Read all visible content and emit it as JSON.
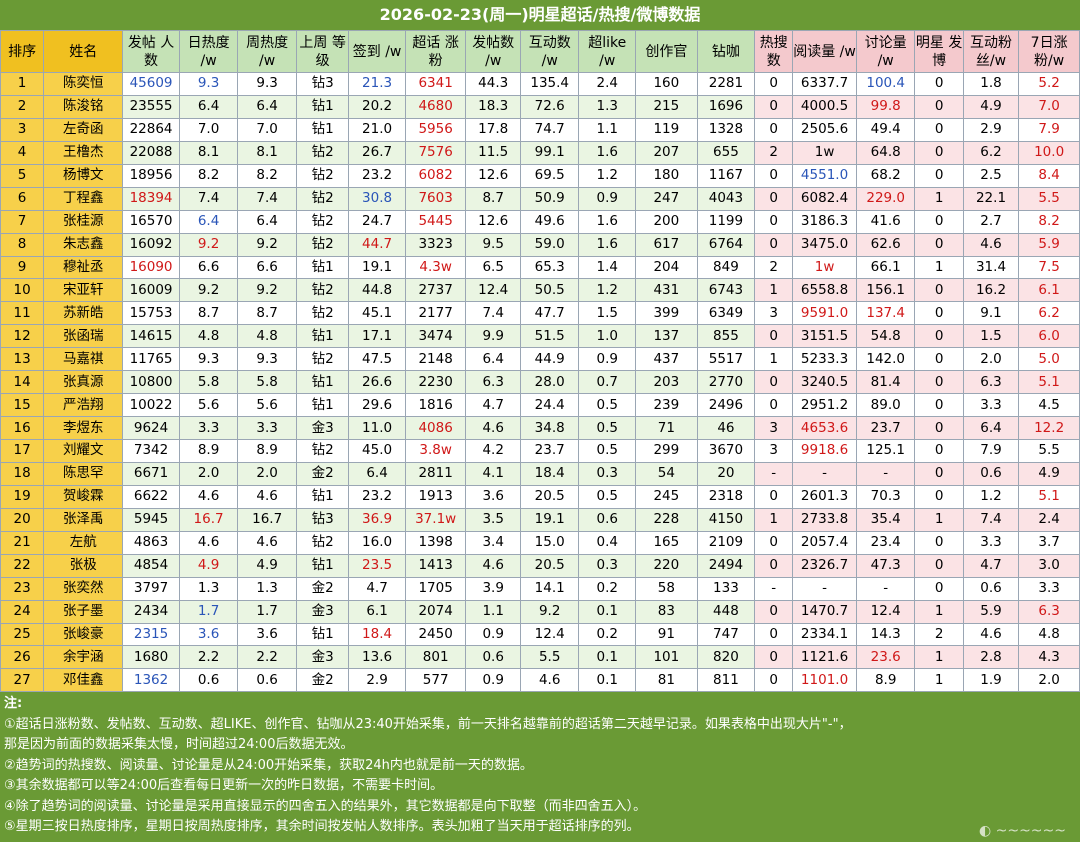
{
  "title": "2026-02-23(周一)明星超话/热搜/微博数据",
  "chart_data": {
    "type": "table",
    "columns": [
      {
        "key": "rank",
        "label": "排序",
        "cls": "h-rank"
      },
      {
        "key": "name",
        "label": "姓名",
        "cls": "h-name"
      },
      {
        "key": "posters",
        "label": "发帖 人数",
        "cls": "h-green h-bold"
      },
      {
        "key": "daily_heat",
        "label": "日热度 /w",
        "cls": "h-green"
      },
      {
        "key": "weekly_heat",
        "label": "周热度 /w",
        "cls": "h-green"
      },
      {
        "key": "level",
        "label": "上周 等级",
        "cls": "h-green"
      },
      {
        "key": "checkin",
        "label": "签到 /w",
        "cls": "h-green"
      },
      {
        "key": "topic_fans",
        "label": "超话 涨粉",
        "cls": "h-green"
      },
      {
        "key": "posts",
        "label": "发帖数 /w",
        "cls": "h-green"
      },
      {
        "key": "interactions",
        "label": "互动数 /w",
        "cls": "h-green"
      },
      {
        "key": "super_like",
        "label": "超like /w",
        "cls": "h-green"
      },
      {
        "key": "creators",
        "label": "创作官",
        "cls": "h-green"
      },
      {
        "key": "diamond",
        "label": "钻咖",
        "cls": "h-green"
      },
      {
        "key": "hot_search",
        "label": "热搜 数",
        "cls": "h-pink"
      },
      {
        "key": "reads",
        "label": "阅读量 /w",
        "cls": "h-pink"
      },
      {
        "key": "discussions",
        "label": "讨论量 /w",
        "cls": "h-pink"
      },
      {
        "key": "star_posts",
        "label": "明星 发博",
        "cls": "h-pink"
      },
      {
        "key": "interact_fans",
        "label": "互动粉 丝/w",
        "cls": "h-pink"
      },
      {
        "key": "fans_7d",
        "label": "7日涨 粉/w",
        "cls": "h-pink"
      }
    ],
    "rows": [
      [
        "1",
        "陈奕恒",
        "45609",
        "9.3",
        "9.3",
        "钻3",
        "21.3",
        "6341",
        "44.3",
        "135.4",
        "2.4",
        "160",
        "2281",
        "0",
        "6337.7",
        "100.4",
        "0",
        "1.8",
        "5.2"
      ],
      [
        "2",
        "陈浚铭",
        "23555",
        "6.4",
        "6.4",
        "钻1",
        "20.2",
        "4680",
        "18.3",
        "72.6",
        "1.3",
        "215",
        "1696",
        "0",
        "4000.5",
        "99.8",
        "0",
        "4.9",
        "7.0"
      ],
      [
        "3",
        "左奇函",
        "22864",
        "7.0",
        "7.0",
        "钻1",
        "21.0",
        "5956",
        "17.8",
        "74.7",
        "1.1",
        "119",
        "1328",
        "0",
        "2505.6",
        "49.4",
        "0",
        "2.9",
        "7.9"
      ],
      [
        "4",
        "王橹杰",
        "22088",
        "8.1",
        "8.1",
        "钻2",
        "26.7",
        "7576",
        "11.5",
        "99.1",
        "1.6",
        "207",
        "655",
        "2",
        "1w",
        "64.8",
        "0",
        "6.2",
        "10.0"
      ],
      [
        "5",
        "杨博文",
        "18956",
        "8.2",
        "8.2",
        "钻2",
        "23.2",
        "6082",
        "12.6",
        "69.5",
        "1.2",
        "180",
        "1167",
        "0",
        "4551.0",
        "68.2",
        "0",
        "2.5",
        "8.4"
      ],
      [
        "6",
        "丁程鑫",
        "18394",
        "7.4",
        "7.4",
        "钻2",
        "30.8",
        "7603",
        "8.7",
        "50.9",
        "0.9",
        "247",
        "4043",
        "0",
        "6082.4",
        "229.0",
        "1",
        "22.1",
        "5.5"
      ],
      [
        "7",
        "张桂源",
        "16570",
        "6.4",
        "6.4",
        "钻2",
        "24.7",
        "5445",
        "12.6",
        "49.6",
        "1.6",
        "200",
        "1199",
        "0",
        "3186.3",
        "41.6",
        "0",
        "2.7",
        "8.2"
      ],
      [
        "8",
        "朱志鑫",
        "16092",
        "9.2",
        "9.2",
        "钻2",
        "44.7",
        "3323",
        "9.5",
        "59.0",
        "1.6",
        "617",
        "6764",
        "0",
        "3475.0",
        "62.6",
        "0",
        "4.6",
        "5.9"
      ],
      [
        "9",
        "穆祉丞",
        "16090",
        "6.6",
        "6.6",
        "钻1",
        "19.1",
        "4.3w",
        "6.5",
        "65.3",
        "1.4",
        "204",
        "849",
        "2",
        "1w",
        "66.1",
        "1",
        "31.4",
        "7.5"
      ],
      [
        "10",
        "宋亚轩",
        "16009",
        "9.2",
        "9.2",
        "钻2",
        "44.8",
        "2737",
        "12.4",
        "50.5",
        "1.2",
        "431",
        "6743",
        "1",
        "6558.8",
        "156.1",
        "0",
        "16.2",
        "6.1"
      ],
      [
        "11",
        "苏新皓",
        "15753",
        "8.7",
        "8.7",
        "钻2",
        "45.1",
        "2177",
        "7.4",
        "47.7",
        "1.5",
        "399",
        "6349",
        "3",
        "9591.0",
        "137.4",
        "0",
        "9.1",
        "6.2"
      ],
      [
        "12",
        "张函瑞",
        "14615",
        "4.8",
        "4.8",
        "钻1",
        "17.1",
        "3474",
        "9.9",
        "51.5",
        "1.0",
        "137",
        "855",
        "0",
        "3151.5",
        "54.8",
        "0",
        "1.5",
        "6.0"
      ],
      [
        "13",
        "马嘉祺",
        "11765",
        "9.3",
        "9.3",
        "钻2",
        "47.5",
        "2148",
        "6.4",
        "44.9",
        "0.9",
        "437",
        "5517",
        "1",
        "5233.3",
        "142.0",
        "0",
        "2.0",
        "5.0"
      ],
      [
        "14",
        "张真源",
        "10800",
        "5.8",
        "5.8",
        "钻1",
        "26.6",
        "2230",
        "6.3",
        "28.0",
        "0.7",
        "203",
        "2770",
        "0",
        "3240.5",
        "81.4",
        "0",
        "6.3",
        "5.1"
      ],
      [
        "15",
        "严浩翔",
        "10022",
        "5.6",
        "5.6",
        "钻1",
        "29.6",
        "1816",
        "4.7",
        "24.4",
        "0.5",
        "239",
        "2496",
        "0",
        "2951.2",
        "89.0",
        "0",
        "3.3",
        "4.5"
      ],
      [
        "16",
        "李煜东",
        "9624",
        "3.3",
        "3.3",
        "金3",
        "11.0",
        "4086",
        "4.6",
        "34.8",
        "0.5",
        "71",
        "46",
        "3",
        "4653.6",
        "23.7",
        "0",
        "6.4",
        "12.2"
      ],
      [
        "17",
        "刘耀文",
        "7342",
        "8.9",
        "8.9",
        "钻2",
        "45.0",
        "3.8w",
        "4.2",
        "23.7",
        "0.5",
        "299",
        "3670",
        "3",
        "9918.6",
        "125.1",
        "0",
        "7.9",
        "5.5"
      ],
      [
        "18",
        "陈思罕",
        "6671",
        "2.0",
        "2.0",
        "金2",
        "6.4",
        "2811",
        "4.1",
        "18.4",
        "0.3",
        "54",
        "20",
        "-",
        "-",
        "-",
        "0",
        "0.6",
        "4.9"
      ],
      [
        "19",
        "贺峻霖",
        "6622",
        "4.6",
        "4.6",
        "钻1",
        "23.2",
        "1913",
        "3.6",
        "20.5",
        "0.5",
        "245",
        "2318",
        "0",
        "2601.3",
        "70.3",
        "0",
        "1.2",
        "5.1"
      ],
      [
        "20",
        "张泽禹",
        "5945",
        "16.7",
        "16.7",
        "钻3",
        "36.9",
        "37.1w",
        "3.5",
        "19.1",
        "0.6",
        "228",
        "4150",
        "1",
        "2733.8",
        "35.4",
        "1",
        "7.4",
        "2.4"
      ],
      [
        "21",
        "左航",
        "4863",
        "4.6",
        "4.6",
        "钻2",
        "16.0",
        "1398",
        "3.4",
        "15.0",
        "0.4",
        "165",
        "2109",
        "0",
        "2057.4",
        "23.4",
        "0",
        "3.3",
        "3.7"
      ],
      [
        "22",
        "张极",
        "4854",
        "4.9",
        "4.9",
        "钻1",
        "23.5",
        "1413",
        "4.6",
        "20.5",
        "0.3",
        "220",
        "2494",
        "0",
        "2326.7",
        "47.3",
        "0",
        "4.7",
        "3.0"
      ],
      [
        "23",
        "张奕然",
        "3797",
        "1.3",
        "1.3",
        "金2",
        "4.7",
        "1705",
        "3.9",
        "14.1",
        "0.2",
        "58",
        "133",
        "-",
        "-",
        "-",
        "0",
        "0.6",
        "3.3"
      ],
      [
        "24",
        "张子墨",
        "2434",
        "1.7",
        "1.7",
        "金3",
        "6.1",
        "2074",
        "1.1",
        "9.2",
        "0.1",
        "83",
        "448",
        "0",
        "1470.7",
        "12.4",
        "1",
        "5.9",
        "6.3"
      ],
      [
        "25",
        "张峻豪",
        "2315",
        "3.6",
        "3.6",
        "钻1",
        "18.4",
        "2450",
        "0.9",
        "12.4",
        "0.2",
        "91",
        "747",
        "0",
        "2334.1",
        "14.3",
        "2",
        "4.6",
        "4.8"
      ],
      [
        "26",
        "余宇涵",
        "1680",
        "2.2",
        "2.2",
        "金3",
        "13.6",
        "801",
        "0.6",
        "5.5",
        "0.1",
        "101",
        "820",
        "0",
        "1121.6",
        "23.6",
        "1",
        "2.8",
        "4.3"
      ],
      [
        "27",
        "邓佳鑫",
        "1362",
        "0.6",
        "0.6",
        "金2",
        "2.9",
        "577",
        "0.9",
        "4.6",
        "0.1",
        "81",
        "811",
        "0",
        "1101.0",
        "8.9",
        "1",
        "1.9",
        "2.0"
      ]
    ],
    "highlights": {
      "blue": {
        "0": {
          "posters": 1,
          "daily_heat": 1,
          "checkin": 1,
          "discussions": 1
        },
        "4": {
          "reads": 1
        },
        "5": {
          "checkin": 1
        },
        "6": {
          "daily_heat": 1
        },
        "23": {
          "daily_heat": 1
        },
        "24": {
          "posters": 1,
          "daily_heat": 1
        },
        "26": {
          "posters": 1
        }
      },
      "red": {
        "0": {
          "topic_fans": 1,
          "fans_7d": 1
        },
        "1": {
          "topic_fans": 1,
          "discussions": 1,
          "fans_7d": 1
        },
        "2": {
          "topic_fans": 1,
          "fans_7d": 1
        },
        "3": {
          "topic_fans": 1,
          "fans_7d": 1
        },
        "4": {
          "topic_fans": 1,
          "fans_7d": 1
        },
        "5": {
          "posters": 1,
          "topic_fans": 1,
          "discussions": 1,
          "fans_7d": 1
        },
        "6": {
          "topic_fans": 1,
          "fans_7d": 1
        },
        "7": {
          "daily_heat": 1,
          "checkin": 1,
          "fans_7d": 1
        },
        "8": {
          "posters": 1,
          "topic_fans": 1,
          "reads": 1,
          "fans_7d": 1
        },
        "9": {
          "fans_7d": 1
        },
        "10": {
          "reads": 1,
          "discussions": 1,
          "fans_7d": 1
        },
        "11": {
          "fans_7d": 1
        },
        "12": {
          "fans_7d": 1
        },
        "13": {
          "fans_7d": 1
        },
        "15": {
          "topic_fans": 1,
          "reads": 1,
          "fans_7d": 1
        },
        "16": {
          "topic_fans": 1,
          "reads": 1
        },
        "18": {
          "fans_7d": 1
        },
        "19": {
          "daily_heat": 1,
          "checkin": 1,
          "topic_fans": 1
        },
        "21": {
          "daily_heat": 1,
          "checkin": 1
        },
        "23": {
          "fans_7d": 1
        },
        "24": {
          "checkin": 1
        },
        "25": {
          "discussions": 1
        },
        "26": {
          "reads": 1
        }
      }
    }
  },
  "notes": {
    "heading": "注:",
    "lines": [
      "①超话日涨粉数、发帖数、互动数、超LIKE、创作官、钻咖从23:40开始采集，前一天排名越靠前的超话第二天越早记录。如果表格中出现大片\"-\"，",
      "那是因为前面的数据采集太慢，时间超过24:00后数据无效。",
      "②趋势词的热搜数、阅读量、讨论量是从24:00开始采集，获取24h内也就是前一天的数据。",
      "③其余数据都可以等24:00后查看每日更新一次的昨日数据，不需要卡时间。",
      "④除了趋势词的阅读量、讨论量是采用直接显示的四舍五入的结果外，其它数据都是向下取整（而非四舍五入）。",
      "⑤星期三按日热度排序，星期日按周热度排序，其余时间按发帖人数排序。表头加粗了当天用于超话排序的列。"
    ]
  },
  "colors": {
    "frame": "#6a9a35",
    "header_rank": "#f0c020",
    "header_green": "#c5e2b6",
    "header_pink": "#f4c9cd",
    "blue": "#2a55b8",
    "red": "#d01818"
  }
}
